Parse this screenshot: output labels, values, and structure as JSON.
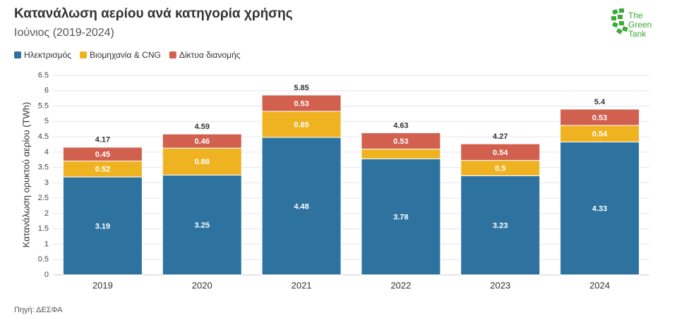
{
  "chart_data": {
    "type": "stacked_bar",
    "title": "Κατανάλωση αερίου ανά κατηγορία χρήσης",
    "subtitle": "Ιούνιος (2019-2024)",
    "y_label": "Κατανάλωση ορυκτού αερίου (TWh)",
    "source": "Πηγή: ΔΕΣΦΑ",
    "logo": [
      "The",
      "Green",
      "Tank"
    ],
    "categories": [
      "2019",
      "2020",
      "2021",
      "2022",
      "2023",
      "2024"
    ],
    "series": [
      {
        "name": "Ηλεκτρισμός",
        "color": "#2e72a0",
        "values": [
          3.19,
          3.25,
          4.48,
          3.78,
          3.23,
          4.33
        ]
      },
      {
        "name": "Βιομηχανία & CNG",
        "color": "#efb322",
        "values": [
          0.52,
          0.88,
          0.85,
          0.32,
          0.5,
          0.54
        ]
      },
      {
        "name": "Δίκτυα διανομής",
        "color": "#d2604f",
        "values": [
          0.45,
          0.46,
          0.53,
          0.53,
          0.54,
          0.53
        ]
      }
    ],
    "totals": [
      4.17,
      4.59,
      5.85,
      4.63,
      4.27,
      5.4
    ],
    "ylim": [
      0,
      6.5
    ],
    "yticks": [
      0,
      0.5,
      1,
      1.5,
      2,
      2.5,
      3,
      3.5,
      4,
      4.5,
      5,
      5.5,
      6,
      6.5
    ],
    "grid": true
  }
}
